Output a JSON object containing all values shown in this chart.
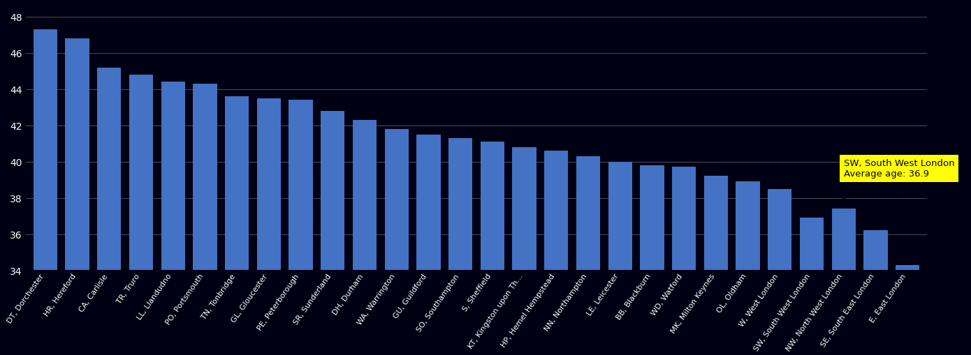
{
  "categories": [
    "DT, Dorchester",
    "HR, Hereford",
    "CA, Carlisle",
    "TR, Truro",
    "LL, Llandudno",
    "PO, Portsmouth",
    "TN, Tonbridge",
    "GL, Gloucester",
    "PE, Peterborough",
    "SR, Sunderland",
    "DH, Durham",
    "WA, Warrington",
    "GU, Guildford",
    "SO, Southampton",
    "S, Sheffield",
    "KT, Kingston upon Th...",
    "HP, Hemel Hempstead",
    "NN, Northampton",
    "LE, Leicester",
    "BB, Blackburn",
    "WD, Watford",
    "MK, Milton Keynes",
    "OL, Oldham",
    "W, West London",
    "SW, South West London",
    "NW, North West London",
    "SE, South East London",
    "E, East London"
  ],
  "values": [
    47.3,
    46.8,
    45.2,
    44.8,
    44.4,
    44.3,
    43.6,
    43.5,
    43.4,
    42.8,
    42.3,
    41.8,
    41.5,
    41.3,
    41.1,
    40.8,
    40.6,
    40.3,
    40.0,
    39.8,
    39.7,
    39.2,
    38.9,
    38.5,
    36.9,
    37.4,
    36.2,
    34.3
  ],
  "sw_index": 24,
  "bar_color": "#4472c4",
  "background_color": "#000014",
  "plot_bg_color": "#000014",
  "text_color": "#ffffff",
  "grid_color": "#ffffff",
  "annotation_bg": "#ffff00",
  "annotation_text": "SW, South West London\nAverage age: 36.9",
  "ylim_min": 34,
  "ylim_max": 48.8,
  "yticks": [
    34,
    36,
    38,
    40,
    42,
    44,
    46,
    48
  ],
  "tick_fontsize": 8,
  "annotation_fontsize": 9.5
}
